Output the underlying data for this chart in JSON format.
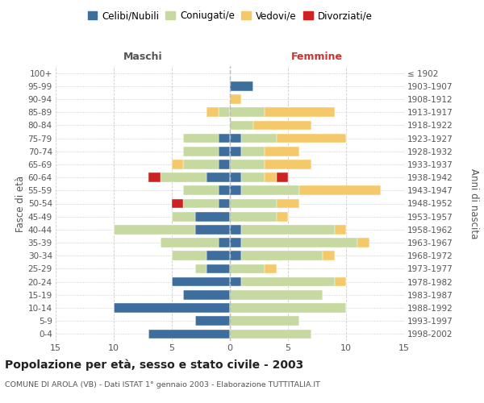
{
  "age_groups": [
    "0-4",
    "5-9",
    "10-14",
    "15-19",
    "20-24",
    "25-29",
    "30-34",
    "35-39",
    "40-44",
    "45-49",
    "50-54",
    "55-59",
    "60-64",
    "65-69",
    "70-74",
    "75-79",
    "80-84",
    "85-89",
    "90-94",
    "95-99",
    "100+"
  ],
  "birth_years": [
    "1998-2002",
    "1993-1997",
    "1988-1992",
    "1983-1987",
    "1978-1982",
    "1973-1977",
    "1968-1972",
    "1963-1967",
    "1958-1962",
    "1953-1957",
    "1948-1952",
    "1943-1947",
    "1938-1942",
    "1933-1937",
    "1928-1932",
    "1923-1927",
    "1918-1922",
    "1913-1917",
    "1908-1912",
    "1903-1907",
    "≤ 1902"
  ],
  "maschi_celibi": [
    7,
    3,
    10,
    4,
    5,
    2,
    2,
    1,
    3,
    3,
    1,
    1,
    2,
    1,
    1,
    1,
    0,
    0,
    0,
    0,
    0
  ],
  "maschi_coniugati": [
    0,
    0,
    0,
    0,
    0,
    1,
    3,
    5,
    7,
    2,
    3,
    3,
    4,
    3,
    3,
    3,
    0,
    1,
    0,
    0,
    0
  ],
  "maschi_vedovi": [
    0,
    0,
    0,
    0,
    0,
    0,
    0,
    0,
    0,
    0,
    0,
    0,
    0,
    1,
    0,
    0,
    0,
    1,
    0,
    0,
    0
  ],
  "maschi_divorziati": [
    0,
    0,
    0,
    0,
    0,
    0,
    0,
    0,
    0,
    0,
    1,
    0,
    1,
    0,
    0,
    0,
    0,
    0,
    0,
    0,
    0
  ],
  "femmine_nubili": [
    0,
    0,
    0,
    0,
    1,
    0,
    1,
    1,
    1,
    0,
    0,
    1,
    1,
    0,
    1,
    1,
    0,
    0,
    0,
    2,
    0
  ],
  "femmine_coniugate": [
    7,
    6,
    10,
    8,
    8,
    3,
    7,
    10,
    8,
    4,
    4,
    5,
    2,
    3,
    2,
    3,
    2,
    3,
    0,
    0,
    0
  ],
  "femmine_vedove": [
    0,
    0,
    0,
    0,
    1,
    1,
    1,
    1,
    1,
    1,
    2,
    7,
    1,
    4,
    3,
    6,
    5,
    6,
    1,
    0,
    0
  ],
  "femmine_divorziate": [
    0,
    0,
    0,
    0,
    0,
    0,
    0,
    0,
    0,
    0,
    0,
    0,
    1,
    0,
    0,
    0,
    0,
    0,
    0,
    0,
    0
  ],
  "color_celibi": "#3d6e9e",
  "color_coniugati": "#c5d9a0",
  "color_vedovi": "#f5c96a",
  "color_divorziati": "#cc2222",
  "xlim": 15,
  "title": "Popolazione per età, sesso e stato civile - 2003",
  "subtitle": "COMUNE DI AROLA (VB) - Dati ISTAT 1° gennaio 2003 - Elaborazione TUTTITALIA.IT",
  "label_maschi": "Maschi",
  "label_femmine": "Femmine",
  "ylabel_left": "Fasce di età",
  "ylabel_right": "Anni di nascita",
  "legend_labels": [
    "Celibi/Nubili",
    "Coniugati/e",
    "Vedovi/e",
    "Divorziati/e"
  ],
  "background": "#ffffff",
  "grid_color": "#cccccc"
}
